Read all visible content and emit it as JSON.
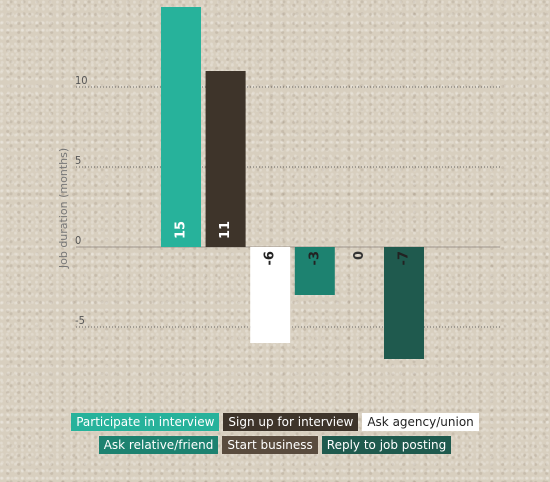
{
  "chart_data": {
    "type": "bar",
    "ylabel": "Job duration (months)",
    "yticks": [
      10,
      5,
      0,
      -5
    ],
    "ylim": [
      -7.5,
      15
    ],
    "grid": true,
    "legend_position": "bottom",
    "series": [
      {
        "name": "Participate in interview",
        "value": 15,
        "label": "15",
        "color": "#27b29b",
        "text_color": "#ffffff"
      },
      {
        "name": "Sign up for interview",
        "value": 11,
        "label": "11",
        "color": "#3e342a",
        "text_color": "#ffffff"
      },
      {
        "name": "Ask agency/union",
        "value": -6,
        "label": "-6",
        "color": "#ffffff",
        "text_color": "#222222"
      },
      {
        "name": "Ask relative/friend",
        "value": -3,
        "label": "-3",
        "color": "#1d8270",
        "text_color": "#222222"
      },
      {
        "name": "Start business",
        "value": 0,
        "label": "0",
        "color": "#5a4c3e",
        "text_color": "#333333"
      },
      {
        "name": "Reply to job posting",
        "value": -7,
        "label": "-7",
        "color": "#1f5a4e",
        "text_color": "#222222"
      }
    ]
  },
  "legend": {
    "rows": [
      [
        {
          "label": "Participate in interview",
          "bg": "#27b29b",
          "fg": "#ffffff"
        },
        {
          "label": "Sign up for interview",
          "bg": "#3e342a",
          "fg": "#ffffff"
        },
        {
          "label": "Ask agency/union",
          "bg": "#ffffff",
          "fg": "#222222"
        }
      ],
      [
        {
          "label": "Ask relative/friend",
          "bg": "#1d8270",
          "fg": "#ffffff"
        },
        {
          "label": "Start business",
          "bg": "#5a4c3e",
          "fg": "#ffffff"
        },
        {
          "label": "Reply to job posting",
          "bg": "#1f5a4e",
          "fg": "#ffffff"
        }
      ]
    ]
  }
}
